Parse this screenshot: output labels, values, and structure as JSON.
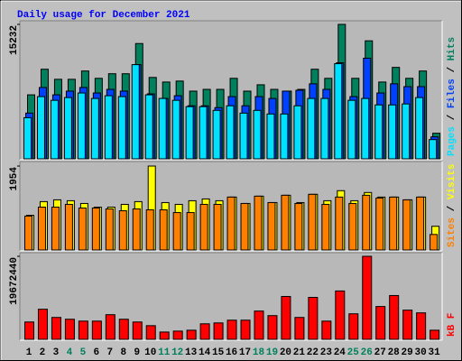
{
  "chart_data": [
    {
      "type": "bar",
      "title": "Daily usage for December 2021",
      "ylim": [
        0,
        15232
      ],
      "yticks": [
        15232
      ],
      "legend_separator": "/",
      "series": [
        {
          "name": "Pages",
          "color": "#00e0ff",
          "values": [
            4660,
            7050,
            6630,
            6940,
            7460,
            6840,
            7150,
            7050,
            10670,
            7250,
            6840,
            6630,
            5910,
            5910,
            5490,
            6010,
            5180,
            5490,
            5080,
            5080,
            6010,
            6840,
            6840,
            10780,
            6630,
            6840,
            6110,
            6110,
            6220,
            6940,
            2180
          ]
        },
        {
          "name": "Files",
          "color": "#0040ff",
          "values": [
            5180,
            8080,
            7250,
            7670,
            8080,
            7460,
            7870,
            7670,
            10670,
            7360,
            6840,
            7150,
            6010,
            6010,
            5800,
            7050,
            6010,
            7050,
            6840,
            7670,
            7770,
            8500,
            7870,
            10880,
            7050,
            11400,
            7460,
            8500,
            8180,
            8180,
            2490
          ]
        },
        {
          "name": "Hits",
          "color": "#00805c",
          "values": [
            7250,
            10150,
            9010,
            9010,
            9950,
            9120,
            9640,
            9640,
            13060,
            9220,
            8700,
            8810,
            7670,
            7870,
            7870,
            9120,
            7670,
            8390,
            7870,
            7670,
            7870,
            10150,
            9120,
            15232,
            9120,
            13370,
            8700,
            10360,
            9120,
            9950,
            2900
          ]
        }
      ]
    },
    {
      "type": "bar",
      "ylim": [
        0,
        1954
      ],
      "yticks": [
        1954
      ],
      "legend_separator": "/",
      "series": [
        {
          "name": "Sites",
          "color": "#ff8000",
          "values": [
            790,
            998,
            998,
            1062,
            977,
            977,
            956,
            913,
            956,
            935,
            935,
            871,
            871,
            1062,
            1062,
            1232,
            1083,
            1253,
            1104,
            1274,
            1083,
            1296,
            1062,
            1232,
            1083,
            1274,
            1210,
            1232,
            1168,
            1232,
            361
          ]
        },
        {
          "name": "Visits",
          "color": "#ffff00",
          "values": [
            807,
            1126,
            1168,
            1147,
            1083,
            998,
            998,
            1062,
            1126,
            1954,
            1104,
            1062,
            1147,
            1189,
            1147,
            1232,
            1083,
            1253,
            1104,
            1274,
            1104,
            1296,
            1147,
            1381,
            1147,
            1338,
            1232,
            1232,
            1168,
            1232,
            552
          ]
        }
      ]
    },
    {
      "type": "bar",
      "ylim": [
        0,
        19672440
      ],
      "yticks": [
        19672440
      ],
      "categories": [
        "1",
        "2",
        "3",
        "4",
        "5",
        "6",
        "7",
        "8",
        "9",
        "10",
        "11",
        "12",
        "13",
        "14",
        "15",
        "16",
        "17",
        "18",
        "19",
        "20",
        "21",
        "22",
        "23",
        "24",
        "25",
        "26",
        "27",
        "28",
        "29",
        "30",
        "31"
      ],
      "category_colors": [
        "#000000",
        "#000000",
        "#000000",
        "#00805c",
        "#00805c",
        "#000000",
        "#000000",
        "#000000",
        "#000000",
        "#000000",
        "#00805c",
        "#00805c",
        "#000000",
        "#000000",
        "#000000",
        "#000000",
        "#000000",
        "#00805c",
        "#00805c",
        "#000000",
        "#000000",
        "#000000",
        "#000000",
        "#000000",
        "#00805c",
        "#00805c",
        "#000000",
        "#000000",
        "#000000",
        "#000000",
        "#000000"
      ],
      "series": [
        {
          "name": "kB F",
          "color": "#ff0000",
          "values": [
            4110000,
            7130000,
            5190000,
            4760000,
            4320000,
            4320000,
            5840000,
            4760000,
            4110000,
            3240000,
            1730000,
            1950000,
            2160000,
            3680000,
            3890000,
            4540000,
            4540000,
            6700000,
            5620000,
            10160000,
            5190000,
            9940000,
            4320000,
            11460000,
            6050000,
            19672440,
            7780000,
            10380000,
            6920000,
            6270000,
            2160000
          ]
        }
      ]
    }
  ]
}
